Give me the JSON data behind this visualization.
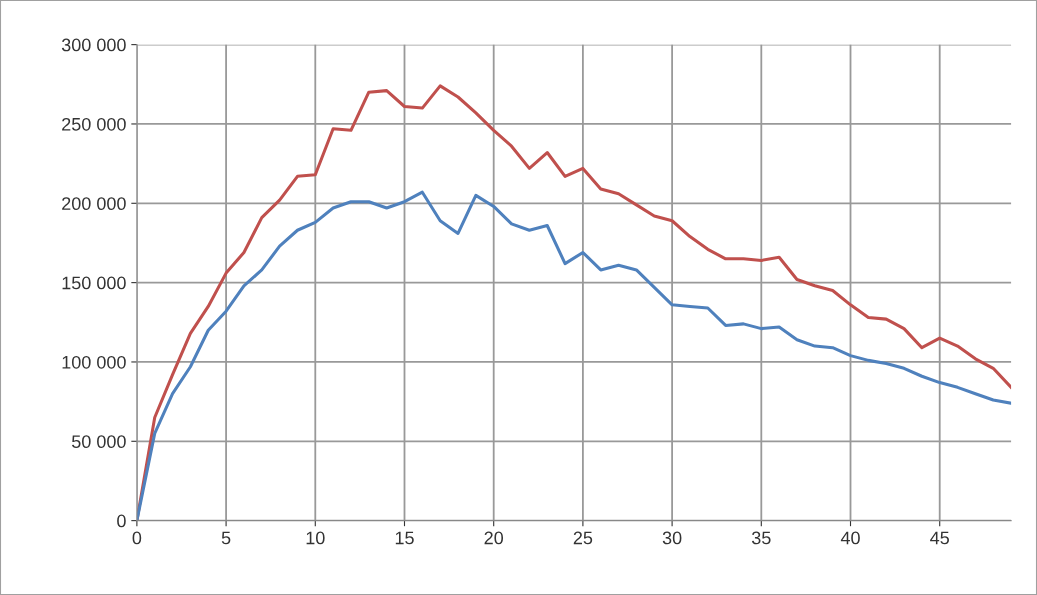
{
  "chart_data": {
    "type": "line",
    "x": [
      0,
      1,
      2,
      3,
      4,
      5,
      6,
      7,
      8,
      9,
      10,
      11,
      12,
      13,
      14,
      15,
      16,
      17,
      18,
      19,
      20,
      21,
      22,
      23,
      24,
      25,
      26,
      27,
      28,
      29,
      30,
      31,
      32,
      33,
      34,
      35,
      36,
      37,
      38,
      39,
      40,
      41,
      42,
      43,
      44,
      45,
      46,
      47,
      48,
      49
    ],
    "series": [
      {
        "color": "#c0504d",
        "values": [
          0,
          65000,
          92000,
          118000,
          135000,
          156000,
          169000,
          191000,
          202000,
          217000,
          218000,
          247000,
          246000,
          270000,
          271000,
          261000,
          260000,
          274000,
          267000,
          257000,
          246000,
          236000,
          222000,
          232000,
          217000,
          222000,
          209000,
          206000,
          199000,
          192000,
          189000,
          179000,
          171000,
          165000,
          165000,
          164000,
          166000,
          152000,
          148000,
          145000,
          136000,
          128000,
          127000,
          121000,
          109000,
          115000,
          110000,
          102000,
          96000,
          84000
        ]
      },
      {
        "color": "#4f81bd",
        "values": [
          0,
          55000,
          80000,
          97000,
          120000,
          132000,
          148000,
          158000,
          173000,
          183000,
          188000,
          197000,
          201000,
          201000,
          197000,
          201000,
          207000,
          189000,
          181000,
          205000,
          198000,
          187000,
          183000,
          186000,
          162000,
          169000,
          158000,
          161000,
          158000,
          147000,
          136000,
          135000,
          134000,
          123000,
          124000,
          121000,
          122000,
          114000,
          110000,
          109000,
          104000,
          101000,
          99000,
          96000,
          91000,
          87000,
          84000,
          80000,
          76000,
          74000
        ]
      }
    ],
    "xlim": [
      0,
      49
    ],
    "xticks": [
      0,
      5,
      10,
      15,
      20,
      25,
      30,
      35,
      40,
      45
    ],
    "ylim": [
      0,
      300000
    ],
    "yticks": [
      {
        "value": 0,
        "label": "0"
      },
      {
        "value": 50000,
        "label": "50 000"
      },
      {
        "value": 100000,
        "label": "100 000"
      },
      {
        "value": 150000,
        "label": "150 000"
      },
      {
        "value": 200000,
        "label": "200 000"
      },
      {
        "value": 250000,
        "label": "250 000"
      },
      {
        "value": 300000,
        "label": "300 000"
      }
    ],
    "grid": true,
    "marker": "none",
    "line_style": "solid",
    "legend": false
  }
}
